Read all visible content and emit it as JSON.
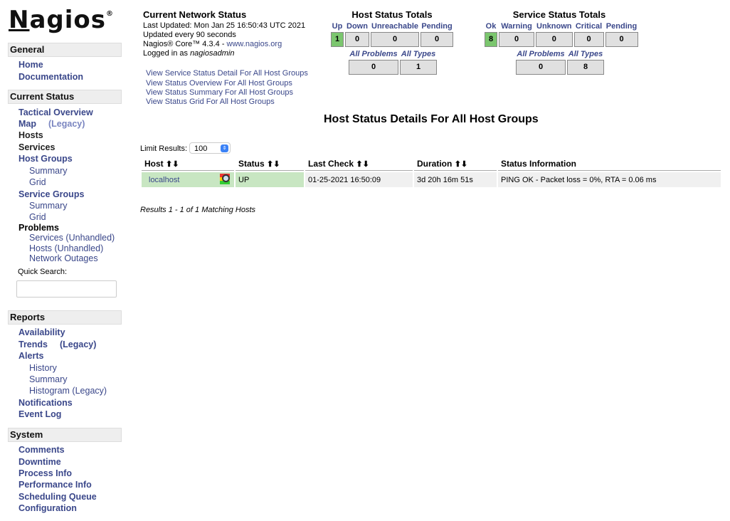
{
  "logo": {
    "text": "Nagios",
    "mark": "®"
  },
  "sidebar": {
    "general": {
      "title": "General",
      "items": [
        "Home",
        "Documentation"
      ]
    },
    "current_status": {
      "title": "Current Status",
      "tactical": "Tactical Overview",
      "map": "Map",
      "map_legacy": "(Legacy)",
      "hosts": "Hosts",
      "services": "Services",
      "host_groups": "Host Groups",
      "hg_summary": "Summary",
      "hg_grid": "Grid",
      "service_groups": "Service Groups",
      "sg_summary": "Summary",
      "sg_grid": "Grid",
      "problems": "Problems",
      "p_services": "Services",
      "p_services_unhandled": "(Unhandled)",
      "p_hosts": "Hosts",
      "p_hosts_unhandled": "(Unhandled)",
      "p_outages": "Network Outages",
      "quick_search_label": "Quick Search:",
      "quick_search_value": ""
    },
    "reports": {
      "title": "Reports",
      "availability": "Availability",
      "trends": "Trends",
      "trends_legacy": "(Legacy)",
      "alerts": "Alerts",
      "history": "History",
      "summary": "Summary",
      "histogram": "Histogram (Legacy)",
      "notifications": "Notifications",
      "event_log": "Event Log"
    },
    "system": {
      "title": "System",
      "items": [
        "Comments",
        "Downtime",
        "Process Info",
        "Performance Info",
        "Scheduling Queue",
        "Configuration"
      ]
    }
  },
  "info": {
    "title": "Current Network Status",
    "last_updated": "Last Updated: Mon Jan 25 16:50:43 UTC 2021",
    "interval": "Updated every 90 seconds",
    "version_prefix": "Nagios® Core™ 4.3.4 - ",
    "version_link": "www.nagios.org",
    "logged_prefix": "Logged in as ",
    "user": "nagiosadmin",
    "links": [
      "View Service Status Detail For All Host Groups",
      "View Status Overview For All Host Groups",
      "View Status Summary For All Host Groups",
      "View Status Grid For All Host Groups"
    ]
  },
  "host_totals": {
    "title": "Host Status Totals",
    "labels": [
      "Up",
      "Down",
      "Unreachable",
      "Pending"
    ],
    "values": [
      "1",
      "0",
      "0",
      "0"
    ],
    "sum_labels": [
      "All Problems",
      "All Types"
    ],
    "sum_values": [
      "0",
      "1"
    ]
  },
  "service_totals": {
    "title": "Service Status Totals",
    "labels": [
      "Ok",
      "Warning",
      "Unknown",
      "Critical",
      "Pending"
    ],
    "values": [
      "8",
      "0",
      "0",
      "0",
      "0"
    ],
    "sum_labels": [
      "All Problems",
      "All Types"
    ],
    "sum_values": [
      "0",
      "8"
    ]
  },
  "main": {
    "title": "Host Status Details For All Host Groups",
    "limit_label": "Limit Results:",
    "limit_value": "100",
    "columns": [
      "Host",
      "Status",
      "Last Check",
      "Duration",
      "Status Information"
    ],
    "rows": [
      {
        "host": "localhost",
        "status": "UP",
        "last_check": "01-25-2021 16:50:09",
        "duration": "3d 20h 16m 51s",
        "info": "PING OK - Packet loss = 0%, RTA = 0.06 ms"
      }
    ],
    "results": "Results 1 - 1 of 1 Matching Hosts"
  },
  "colors": {
    "up": "#c8e6c2",
    "ok_box": "#7bc66e",
    "link": "#3a478a"
  }
}
